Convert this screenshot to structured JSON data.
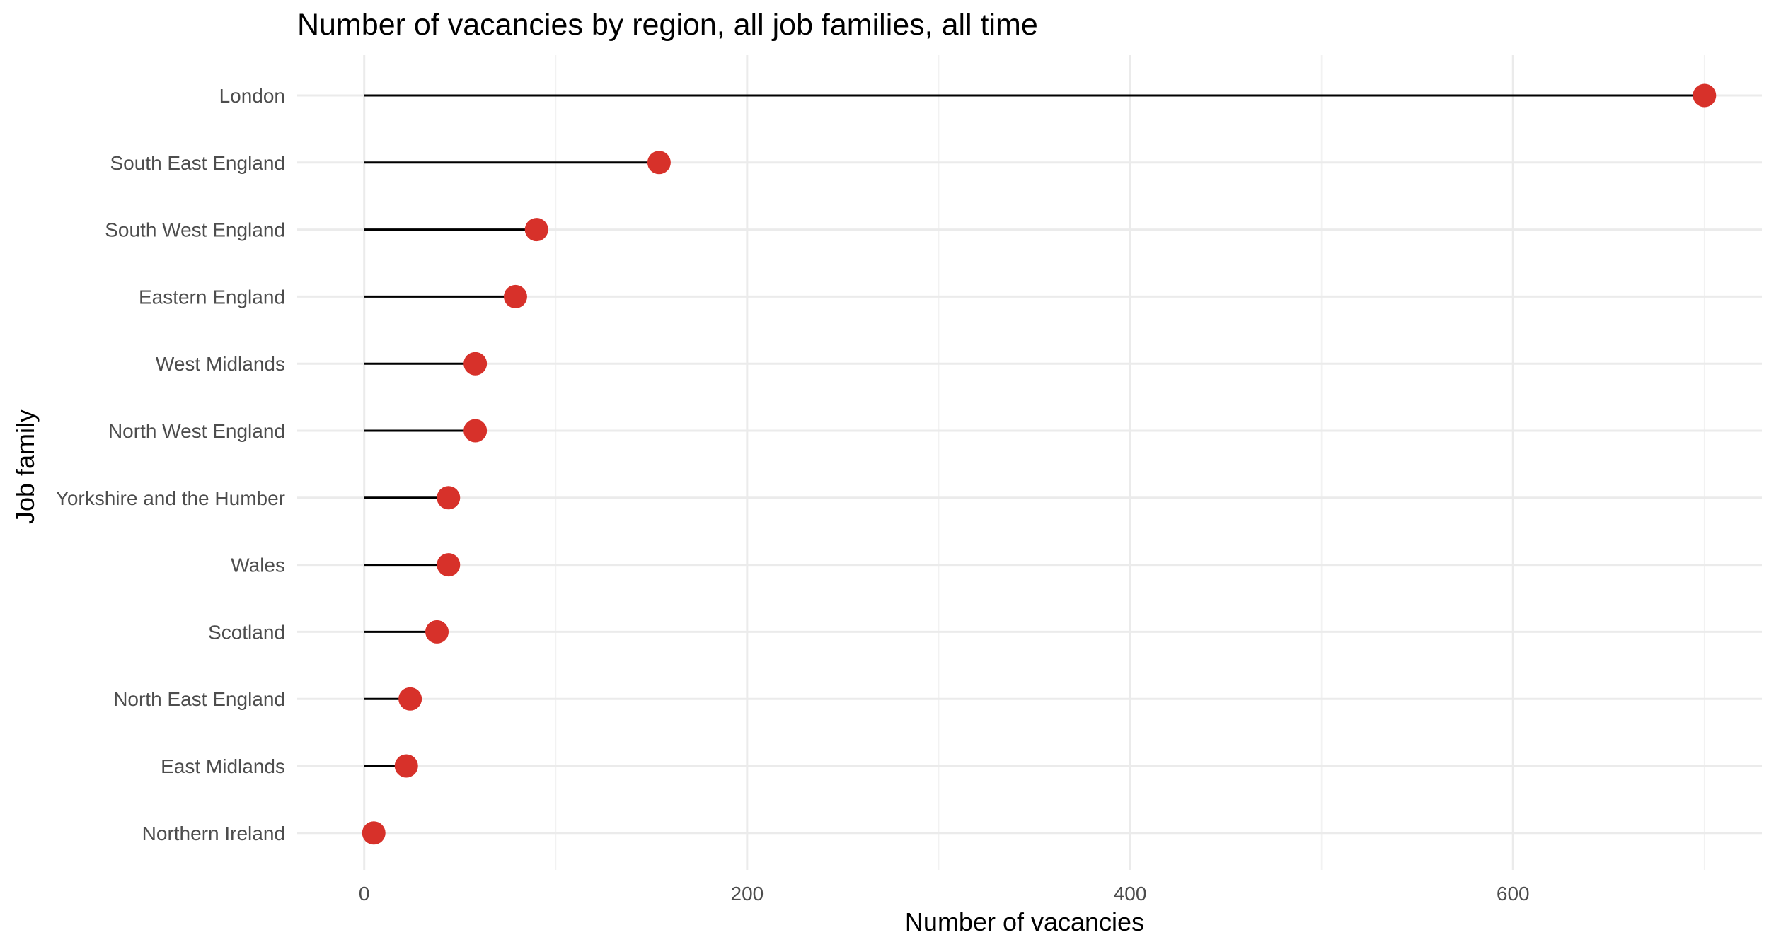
{
  "chart_data": {
    "type": "lollipop",
    "title": "Number of vacancies by region, all job families, all time",
    "xlabel": "Number of vacancies",
    "ylabel": "Job family",
    "xlim": [
      -35,
      730
    ],
    "x_ticks": [
      0,
      200,
      400,
      600
    ],
    "x_tick_labels": [
      "0",
      "200",
      "400",
      "600"
    ],
    "x_minor_ticks": [
      100,
      300,
      500,
      700
    ],
    "grid": true,
    "point_color": "#d7312a",
    "segment_color": "#000000",
    "categories": [
      "London",
      "South East England",
      "South West England",
      "Eastern England",
      "West Midlands",
      "North West England",
      "Yorkshire and the Humber",
      "Wales",
      "Scotland",
      "North East England",
      "East Midlands",
      "Northern Ireland"
    ],
    "values": [
      700,
      154,
      90,
      79,
      58,
      58,
      44,
      44,
      38,
      24,
      22,
      5
    ]
  }
}
